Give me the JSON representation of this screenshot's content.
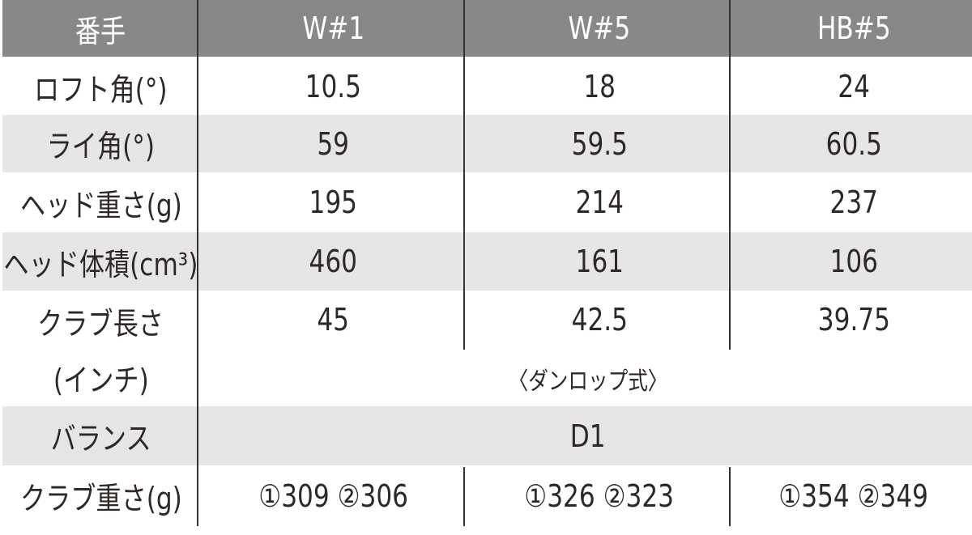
{
  "header": {
    "label": "番手",
    "columns": [
      "W#1",
      "W#5",
      "HB#5"
    ]
  },
  "rows": [
    {
      "label": "ロフト角(°)",
      "values": [
        "10.5",
        "18",
        "24"
      ]
    },
    {
      "label": "ライ角(°)",
      "values": [
        "59",
        "59.5",
        "60.5"
      ]
    },
    {
      "label": "ヘッド重さ(g)",
      "values": [
        "195",
        "214",
        "237"
      ]
    },
    {
      "label": "ヘッド体積(cm³)",
      "values": [
        "460",
        "161",
        "106"
      ]
    },
    {
      "label": "クラブ長さ",
      "label2": "(インチ)",
      "values": [
        "45",
        "42.5",
        "39.75"
      ],
      "note": "〈ダンロップ式〉"
    },
    {
      "label": "バランス",
      "value": "D1"
    },
    {
      "label": "クラブ重さ(g)",
      "values": [
        "①309 ②306",
        "①326 ②323",
        "①354 ②349"
      ]
    }
  ],
  "colors": {
    "header_bg": "#888888",
    "stripe_bg": "#e6e6e6",
    "rule": "#3a3030"
  }
}
